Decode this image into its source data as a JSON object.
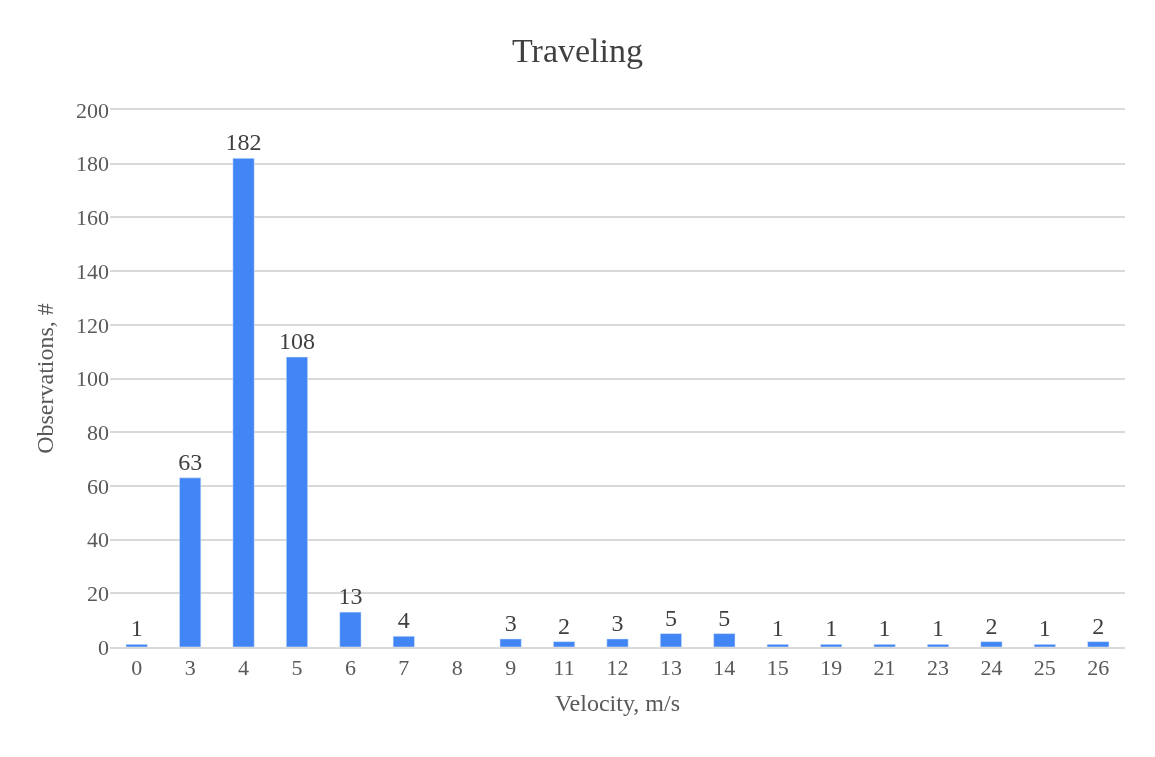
{
  "chart_data": {
    "type": "bar",
    "title": "Traveling",
    "xlabel": "Velocity, m/s",
    "ylabel": "Observations, #",
    "categories": [
      "0",
      "3",
      "4",
      "5",
      "6",
      "7",
      "8",
      "9",
      "11",
      "12",
      "13",
      "14",
      "15",
      "19",
      "21",
      "23",
      "24",
      "25",
      "26"
    ],
    "values": [
      1,
      63,
      182,
      108,
      13,
      4,
      null,
      3,
      2,
      3,
      5,
      5,
      1,
      1,
      1,
      1,
      2,
      1,
      2
    ],
    "value_labels": [
      "1",
      "63",
      "182",
      "108",
      "13",
      "4",
      null,
      "3",
      "2",
      "3",
      "5",
      "5",
      "1",
      "1",
      "1",
      "1",
      "2",
      "1",
      "2"
    ],
    "color": "#4285f4",
    "ylim": [
      0,
      200
    ],
    "yticks": [
      0,
      20,
      40,
      60,
      80,
      100,
      120,
      140,
      160,
      180,
      200
    ],
    "grid": "y",
    "legend": false
  }
}
